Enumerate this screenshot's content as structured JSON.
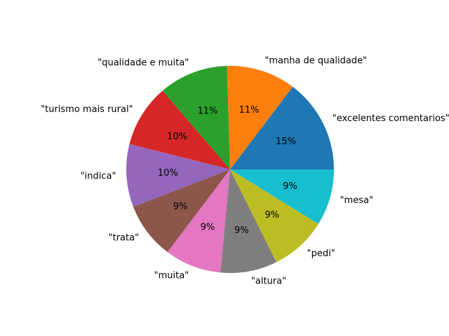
{
  "chart_data": {
    "type": "pie",
    "title": "",
    "start_angle_deg": 0,
    "direction": "counterclockwise",
    "autopct_format": "percent-integer",
    "slices": [
      {
        "label": "\"excelentes comentarios\"",
        "value": 15,
        "pct_text": "15%",
        "color": "#1f77b4"
      },
      {
        "label": "\"manha de qualidade\"",
        "value": 11,
        "pct_text": "11%",
        "color": "#ff7f0e"
      },
      {
        "label": "\"qualidade e muita\"",
        "value": 11,
        "pct_text": "11%",
        "color": "#2ca02c"
      },
      {
        "label": "\"turismo mais rural\"",
        "value": 10,
        "pct_text": "10%",
        "color": "#d62728"
      },
      {
        "label": "\"indica\"",
        "value": 10,
        "pct_text": "10%",
        "color": "#9467bd"
      },
      {
        "label": "\"trata\"",
        "value": 9,
        "pct_text": "9%",
        "color": "#8c564b"
      },
      {
        "label": "\"muita\"",
        "value": 9,
        "pct_text": "9%",
        "color": "#e377c2"
      },
      {
        "label": "\"altura\"",
        "value": 9,
        "pct_text": "9%",
        "color": "#7f7f7f"
      },
      {
        "label": "\"pedi\"",
        "value": 9,
        "pct_text": "9%",
        "color": "#bcbd22"
      },
      {
        "label": "\"mesa\"",
        "value": 9,
        "pct_text": "9%",
        "color": "#17becf"
      }
    ]
  }
}
